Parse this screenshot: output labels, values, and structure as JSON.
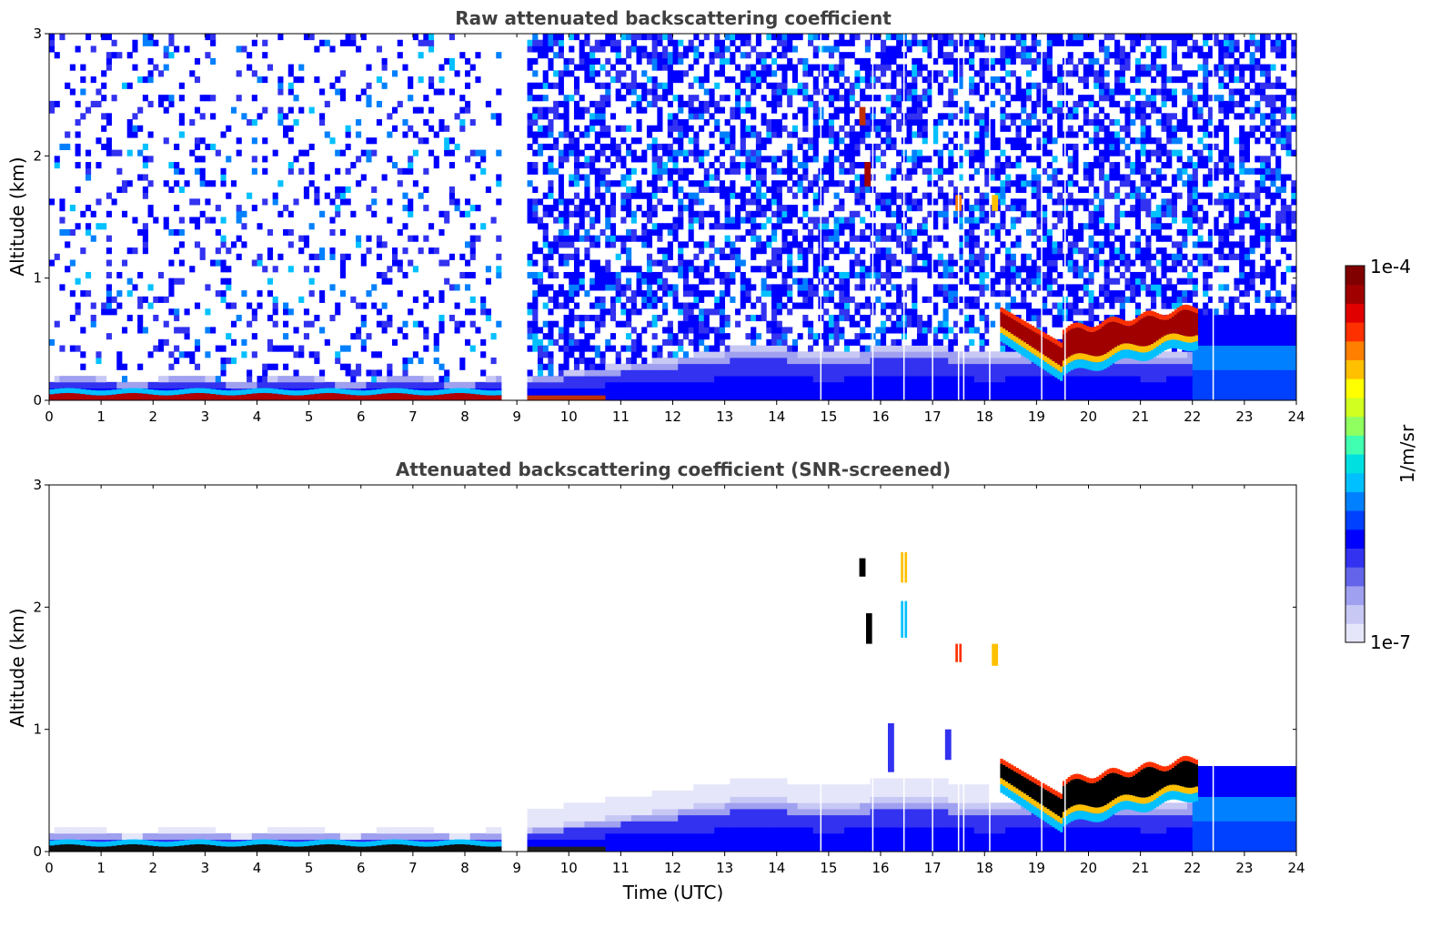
{
  "chart_data": [
    {
      "type": "heatmap",
      "title": "Raw attenuated backscattering coefficient",
      "xlabel": "",
      "ylabel": "Altitude (km)",
      "xlim": [
        0,
        24
      ],
      "ylim": [
        0,
        3
      ],
      "x_ticks": [
        "0",
        "1",
        "2",
        "3",
        "4",
        "5",
        "6",
        "7",
        "8",
        "9",
        "10",
        "11",
        "12",
        "13",
        "14",
        "15",
        "16",
        "17",
        "18",
        "19",
        "20",
        "21",
        "22",
        "23",
        "24"
      ],
      "y_ticks": [
        "0",
        "1",
        "2",
        "3"
      ],
      "data_gaps_utc": [
        [
          8.65,
          9.2
        ]
      ],
      "features": [
        {
          "label": "surface layer",
          "x_range": [
            0,
            8.65
          ],
          "altitude_km": [
            0,
            0.2
          ],
          "max_value": "1e-4"
        },
        {
          "label": "elevated layer",
          "x_range": [
            18.3,
            22.1
          ],
          "altitude_km": [
            0.3,
            0.75
          ],
          "max_value": "1e-4"
        },
        {
          "label": "cloud",
          "x": 15.8,
          "altitude_km": [
            1.75,
            1.95
          ]
        },
        {
          "label": "cloud",
          "x": 15.65,
          "altitude_km": [
            2.25,
            2.4
          ]
        }
      ]
    },
    {
      "type": "heatmap",
      "title": "Attenuated backscattering coefficient (SNR-screened)",
      "xlabel": "Time (UTC)",
      "ylabel": "Altitude (km)",
      "xlim": [
        0,
        24
      ],
      "ylim": [
        0,
        3
      ],
      "x_ticks": [
        "0",
        "1",
        "2",
        "3",
        "4",
        "5",
        "6",
        "7",
        "8",
        "9",
        "10",
        "11",
        "12",
        "13",
        "14",
        "15",
        "16",
        "17",
        "18",
        "19",
        "20",
        "21",
        "22",
        "23",
        "24"
      ],
      "y_ticks": [
        "0",
        "1",
        "2",
        "3"
      ],
      "data_gaps_utc": [
        [
          8.65,
          9.2
        ]
      ],
      "features": [
        {
          "label": "surface layer",
          "x_range": [
            0,
            8.65
          ],
          "altitude_km": [
            0,
            0.15
          ]
        },
        {
          "label": "elevated layer",
          "x_range": [
            18.3,
            22.1
          ],
          "altitude_km": [
            0.3,
            0.8
          ]
        },
        {
          "label": "cloud",
          "x": 15.8,
          "altitude_km": [
            1.7,
            1.95
          ]
        },
        {
          "label": "cloud",
          "x": 16.45,
          "altitude_km": [
            1.75,
            2.45
          ]
        }
      ]
    }
  ],
  "colorbar": {
    "label": "1/m/sr",
    "max_label": "1e-4",
    "min_label": "1e-7",
    "colors": [
      "#e6e6fa",
      "#c8c8f5",
      "#a0a0f0",
      "#6464eb",
      "#3232f0",
      "#0000ff",
      "#0040ff",
      "#0080ff",
      "#00c0ff",
      "#00e0e0",
      "#40ffb0",
      "#90ff60",
      "#d0ff20",
      "#ffff00",
      "#ffc000",
      "#ff8000",
      "#ff3000",
      "#e00000",
      "#a00000",
      "#800000"
    ]
  }
}
